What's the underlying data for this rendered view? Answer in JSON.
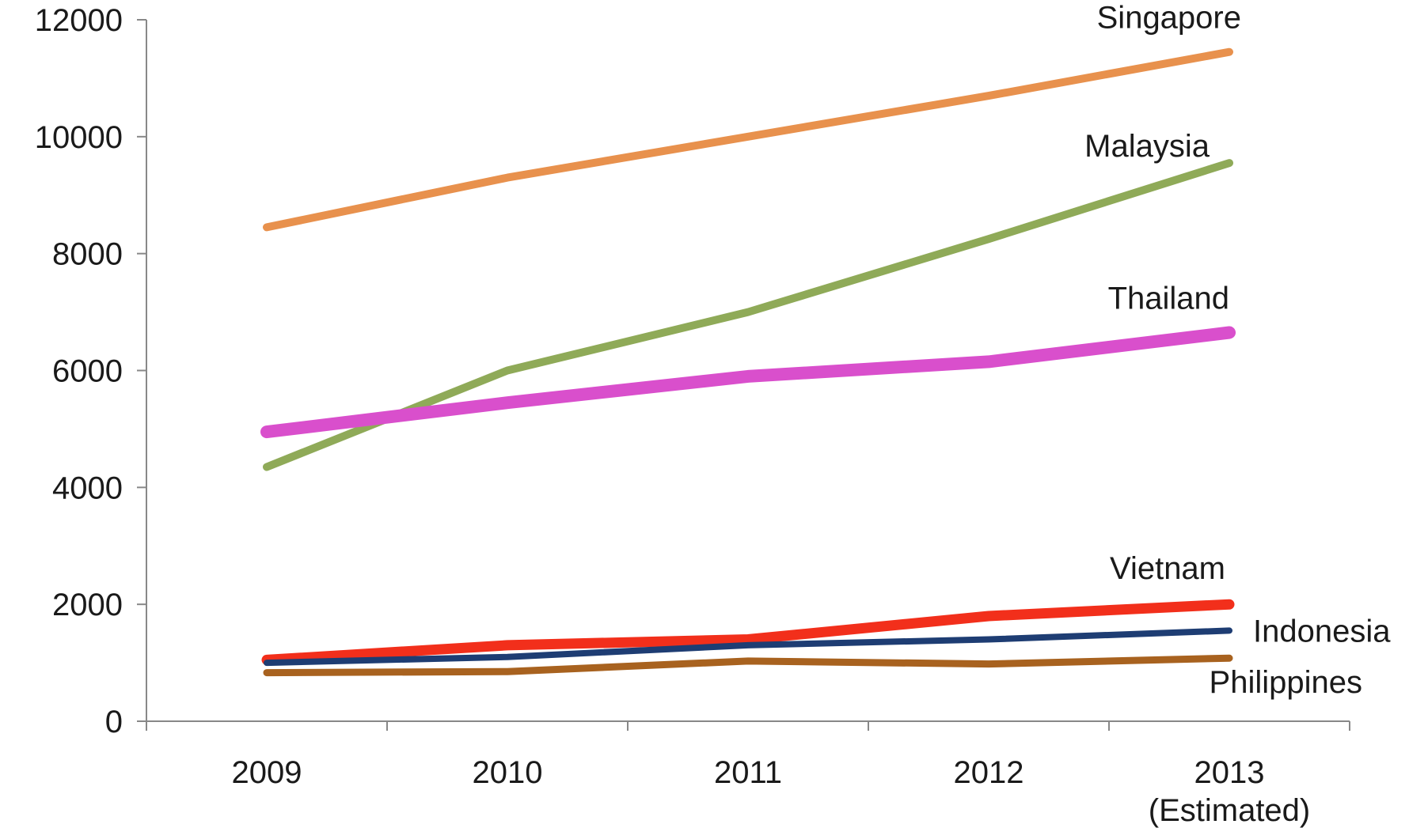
{
  "chart_data": {
    "type": "line",
    "categories": [
      "2009",
      "2010",
      "2011",
      "2012",
      "2013"
    ],
    "category_sublabels": [
      "",
      "",
      "",
      "",
      "(Estimated)"
    ],
    "ylim": [
      0,
      12000
    ],
    "yticks": [
      "0",
      "2000",
      "4000",
      "6000",
      "8000",
      "10000",
      "12000"
    ],
    "grid": false,
    "legend": "direct labels at line ends",
    "series": [
      {
        "name": "Singapore",
        "color": "#E8914D",
        "values": [
          8450,
          9300,
          10000,
          10700,
          11450
        ]
      },
      {
        "name": "Malaysia",
        "color": "#8FAA58",
        "values": [
          4350,
          6000,
          7000,
          8250,
          9550
        ]
      },
      {
        "name": "Thailand",
        "color": "#D94FCC",
        "values": [
          4950,
          5450,
          5900,
          6150,
          6650
        ]
      },
      {
        "name": "Vietnam",
        "color": "#F22F1B",
        "values": [
          1050,
          1300,
          1400,
          1800,
          2000
        ]
      },
      {
        "name": "Indonesia",
        "color": "#1E3D73",
        "values": [
          1000,
          1100,
          1300,
          1400,
          1550
        ]
      },
      {
        "name": "Philippines",
        "color": "#A8621F",
        "values": [
          830,
          850,
          1030,
          980,
          1080
        ]
      }
    ]
  }
}
